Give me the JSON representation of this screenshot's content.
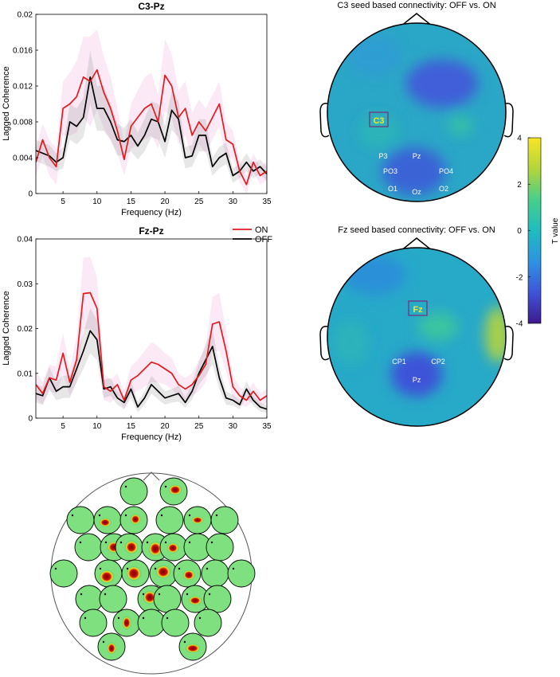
{
  "chart_data": [
    {
      "type": "line",
      "title": "C3-Pz",
      "xlabel": "Frequency (Hz)",
      "ylabel": "Lagged Coherence",
      "xlim": [
        1,
        35
      ],
      "ylim": [
        0,
        0.02
      ],
      "xticks": [
        "5",
        "10",
        "15",
        "20",
        "25",
        "30",
        "35"
      ],
      "yticks": [
        "0",
        "0.004",
        "0.008",
        "0.012",
        "0.016",
        "0.02"
      ],
      "x": [
        1,
        2,
        3,
        4,
        5,
        6,
        7,
        8,
        9,
        10,
        11,
        12,
        13,
        14,
        15,
        16,
        17,
        18,
        19,
        20,
        21,
        22,
        23,
        24,
        25,
        26,
        27,
        28,
        29,
        30,
        31,
        32,
        33,
        34,
        35
      ],
      "series": [
        {
          "name": "ON",
          "color": "#e31a1c",
          "values": [
            0.0035,
            0.006,
            0.004,
            0.003,
            0.0095,
            0.01,
            0.0108,
            0.013,
            0.0125,
            0.0138,
            0.0113,
            0.0095,
            0.007,
            0.0038,
            0.0075,
            0.0085,
            0.0095,
            0.01,
            0.008,
            0.0132,
            0.012,
            0.0085,
            0.0095,
            0.0065,
            0.008,
            0.007,
            0.0085,
            0.01,
            0.006,
            0.0055,
            0.0025,
            0.001,
            0.0035,
            0.002,
            0.0025
          ],
          "band": [
            0.0015,
            0.0018,
            0.002,
            0.002,
            0.003,
            0.0035,
            0.004,
            0.0045,
            0.005,
            0.0045,
            0.004,
            0.0035,
            0.0025,
            0.0018,
            0.0025,
            0.003,
            0.0035,
            0.0035,
            0.003,
            0.004,
            0.0035,
            0.003,
            0.003,
            0.0025,
            0.0025,
            0.0025,
            0.0025,
            0.0025,
            0.002,
            0.0015,
            0.0012,
            0.001,
            0.001,
            0.001,
            0.001
          ]
        },
        {
          "name": "OFF",
          "color": "#000000",
          "values": [
            0.0048,
            0.0045,
            0.0042,
            0.0035,
            0.004,
            0.008,
            0.0075,
            0.0085,
            0.013,
            0.0095,
            0.0095,
            0.008,
            0.006,
            0.0058,
            0.0065,
            0.0053,
            0.0065,
            0.0083,
            0.008,
            0.0058,
            0.0093,
            0.0083,
            0.004,
            0.0042,
            0.0065,
            0.0065,
            0.003,
            0.004,
            0.0045,
            0.002,
            0.0025,
            0.0035,
            0.0025,
            0.003,
            0.0022
          ],
          "band": [
            0.0012,
            0.0012,
            0.0012,
            0.001,
            0.0012,
            0.002,
            0.002,
            0.0022,
            0.003,
            0.0025,
            0.0025,
            0.002,
            0.0018,
            0.0015,
            0.0018,
            0.0015,
            0.0018,
            0.002,
            0.002,
            0.0018,
            0.0022,
            0.002,
            0.0012,
            0.0012,
            0.0018,
            0.0018,
            0.001,
            0.0012,
            0.0012,
            0.0008,
            0.0008,
            0.001,
            0.0008,
            0.0008,
            0.0008
          ]
        }
      ]
    },
    {
      "type": "line",
      "title": "Fz-Pz",
      "xlabel": "Frequency (Hz)",
      "ylabel": "Lagged Coherence",
      "xlim": [
        1,
        35
      ],
      "ylim": [
        0,
        0.04
      ],
      "xticks": [
        "5",
        "10",
        "15",
        "20",
        "25",
        "30",
        "35"
      ],
      "yticks": [
        "0",
        "0.01",
        "0.02",
        "0.03",
        "0.04"
      ],
      "legend": {
        "placement": "top-right",
        "entries": [
          "ON",
          "OFF"
        ]
      },
      "x": [
        1,
        2,
        3,
        4,
        5,
        6,
        7,
        8,
        9,
        10,
        11,
        12,
        13,
        14,
        15,
        16,
        17,
        18,
        19,
        20,
        21,
        22,
        23,
        24,
        25,
        26,
        27,
        28,
        29,
        30,
        31,
        32,
        33,
        34,
        35
      ],
      "series": [
        {
          "name": "ON",
          "color": "#e31a1c",
          "values": [
            0.0075,
            0.0055,
            0.009,
            0.0085,
            0.0145,
            0.008,
            0.013,
            0.0278,
            0.028,
            0.0245,
            0.007,
            0.006,
            0.0075,
            0.004,
            0.0085,
            0.0095,
            0.011,
            0.0125,
            0.012,
            0.011,
            0.01,
            0.0075,
            0.0065,
            0.0075,
            0.0095,
            0.012,
            0.021,
            0.0215,
            0.015,
            0.007,
            0.005,
            0.004,
            0.006,
            0.004,
            0.005
          ],
          "band": [
            0.003,
            0.0025,
            0.003,
            0.003,
            0.0045,
            0.003,
            0.005,
            0.008,
            0.008,
            0.007,
            0.003,
            0.0025,
            0.0025,
            0.002,
            0.003,
            0.0035,
            0.004,
            0.0045,
            0.004,
            0.0035,
            0.0035,
            0.0025,
            0.0025,
            0.0025,
            0.0035,
            0.004,
            0.006,
            0.0065,
            0.0045,
            0.0025,
            0.002,
            0.0015,
            0.002,
            0.0015,
            0.0015
          ]
        },
        {
          "name": "OFF",
          "color": "#000000",
          "values": [
            0.0055,
            0.005,
            0.009,
            0.006,
            0.007,
            0.007,
            0.011,
            0.015,
            0.0195,
            0.0175,
            0.0065,
            0.007,
            0.0045,
            0.0035,
            0.0065,
            0.0025,
            0.0045,
            0.0075,
            0.006,
            0.0045,
            0.005,
            0.0055,
            0.0035,
            0.006,
            0.01,
            0.013,
            0.016,
            0.009,
            0.0045,
            0.004,
            0.003,
            0.0065,
            0.004,
            0.0025,
            0.002
          ],
          "band": [
            0.002,
            0.002,
            0.0025,
            0.002,
            0.0025,
            0.0025,
            0.003,
            0.004,
            0.005,
            0.0045,
            0.002,
            0.002,
            0.0015,
            0.0015,
            0.002,
            0.0012,
            0.0015,
            0.002,
            0.0018,
            0.0015,
            0.0015,
            0.0018,
            0.0012,
            0.0018,
            0.0025,
            0.0035,
            0.004,
            0.0025,
            0.0015,
            0.0012,
            0.001,
            0.0018,
            0.0012,
            0.001,
            0.0008
          ]
        }
      ]
    },
    {
      "type": "heatmap",
      "title": "C3 seed based connectivity: OFF vs. ON",
      "seed": "C3",
      "electrodes": [
        "P3",
        "Pz",
        "PO3",
        "PO4",
        "O1",
        "Oz",
        "O2"
      ]
    },
    {
      "type": "heatmap",
      "title": "Fz seed based connectivity: OFF vs. ON",
      "seed": "Fz",
      "electrodes": [
        "CP1",
        "CP2",
        "Pz"
      ]
    },
    {
      "type": "colorbar",
      "label": "T value",
      "range": [
        -4,
        4
      ],
      "ticks": [
        "4",
        "2",
        "0",
        "-2",
        "-4"
      ],
      "colormap": [
        "#3d1a8c",
        "#3f55d9",
        "#2e92e0",
        "#1fbcc0",
        "#49cf8a",
        "#b3d43c",
        "#f7e625"
      ]
    }
  ]
}
